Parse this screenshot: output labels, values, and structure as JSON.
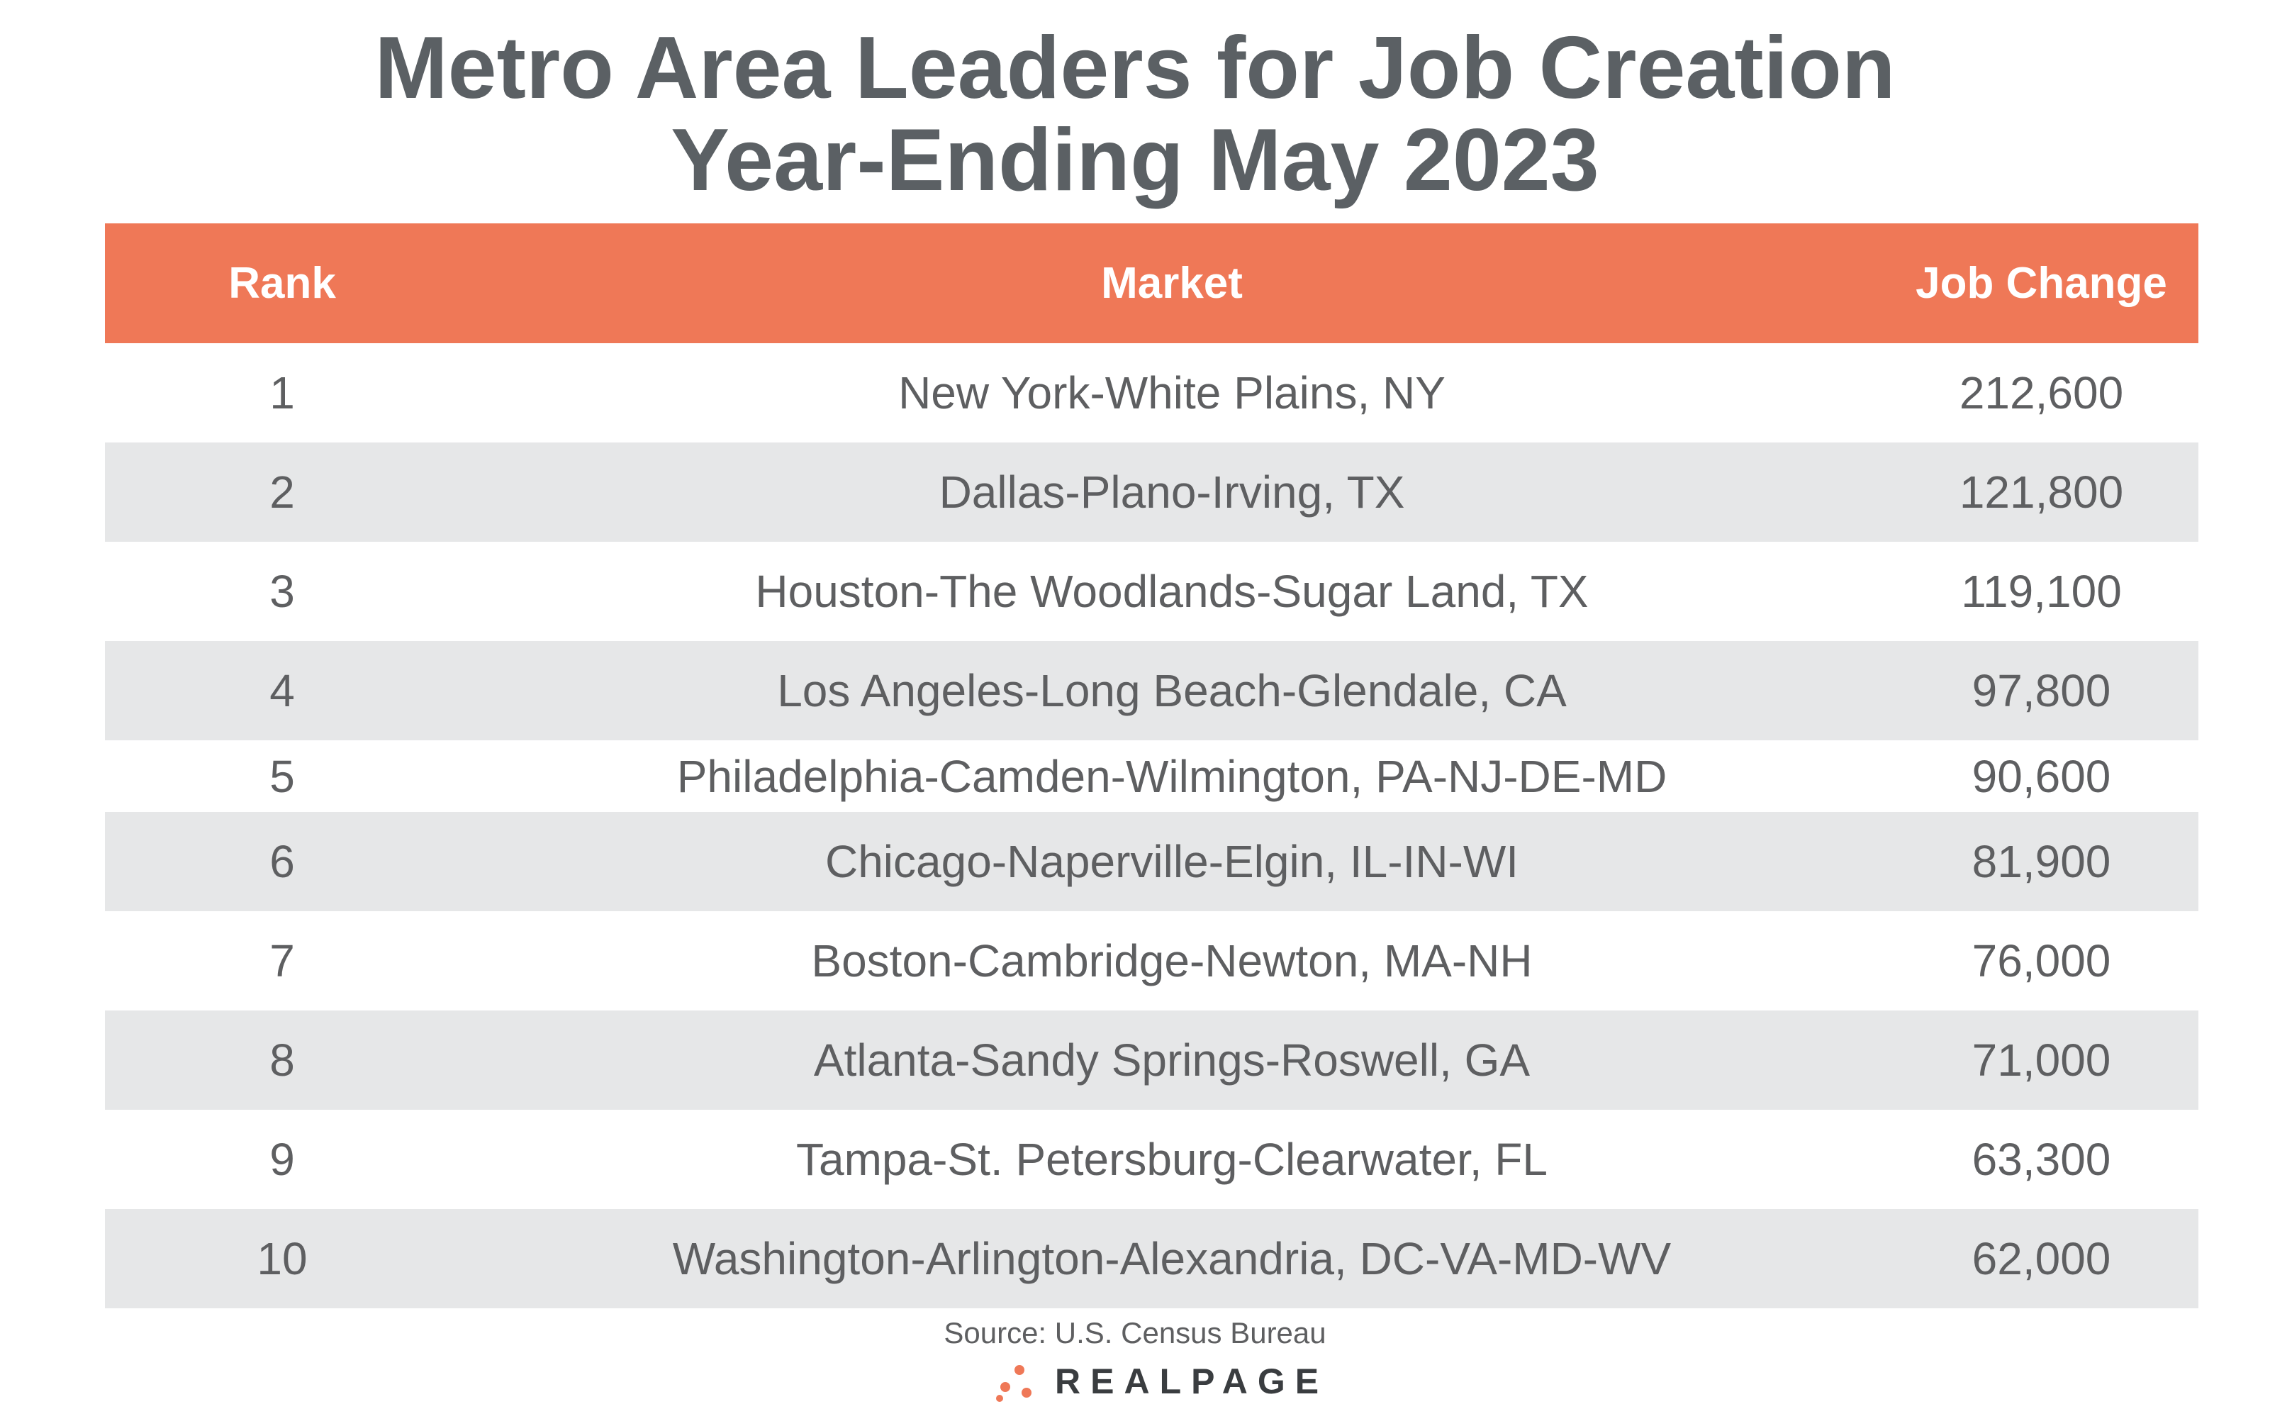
{
  "title": [
    "Metro Area Leaders for Job Creation",
    "Year-Ending May 2023"
  ],
  "table": {
    "header": [
      "Rank",
      "Market",
      "Job Change"
    ],
    "rows": [
      [
        "1",
        "New York-White Plains, NY",
        "212,600"
      ],
      [
        "2",
        "Dallas-Plano-Irving, TX",
        "121,800"
      ],
      [
        "3",
        "Houston-The Woodlands-Sugar Land, TX",
        "119,100"
      ],
      [
        "4",
        "Los Angeles-Long Beach-Glendale, CA",
        "97,800"
      ],
      [
        "5",
        "Philadelphia-Camden-Wilmington, PA-NJ-DE-MD",
        "90,600"
      ],
      [
        "6",
        "Chicago-Naperville-Elgin, IL-IN-WI",
        "81,900"
      ],
      [
        "7",
        "Boston-Cambridge-Newton, MA-NH",
        "76,000"
      ],
      [
        "8",
        "Atlanta-Sandy Springs-Roswell, GA",
        "71,000"
      ],
      [
        "9",
        "Tampa-St. Petersburg-Clearwater, FL",
        "63,300"
      ],
      [
        "10",
        "Washington-Arlington-Alexandria, DC-VA-MD-WV",
        "62,000"
      ]
    ]
  },
  "source": "Source: U.S. Census Bureau",
  "logo": "REALPAGE"
}
